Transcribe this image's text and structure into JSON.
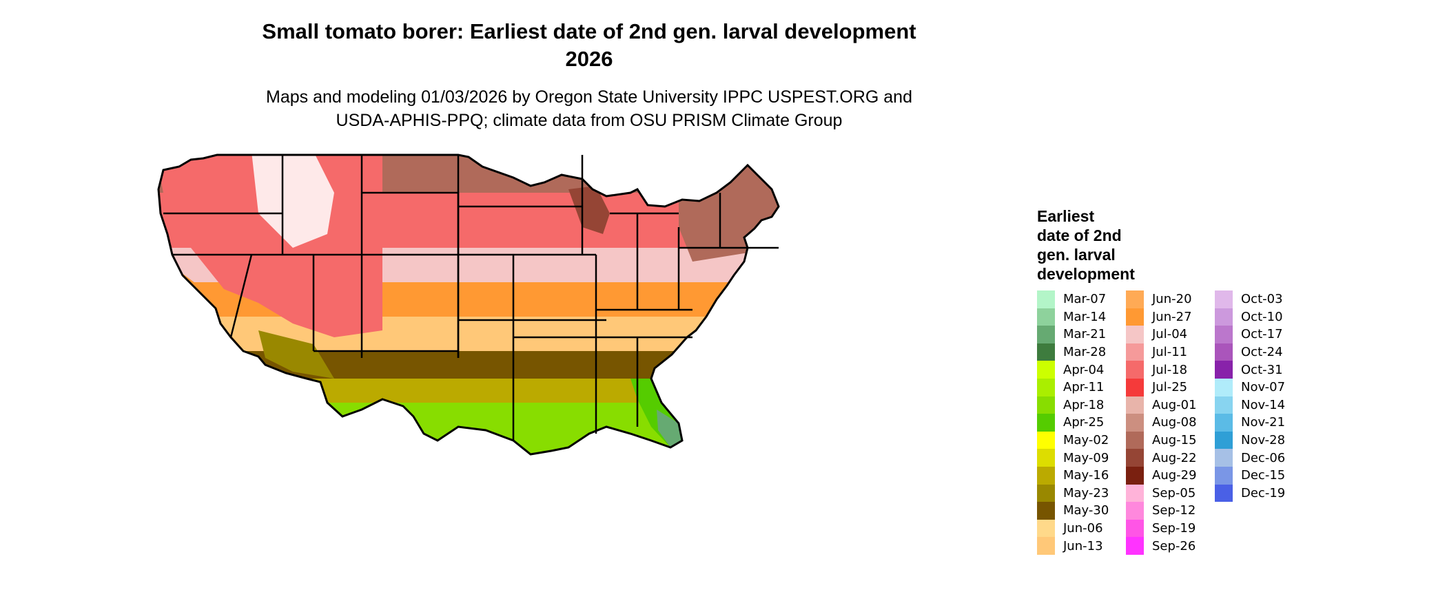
{
  "title": "Small tomato borer: Earliest date of 2nd gen. larval development\n2026",
  "title_line1": "Small tomato borer: Earliest date of 2nd gen. larval development",
  "title_line2": "2026",
  "subtitle_line1": "Maps and modeling 01/03/2026 by Oregon State University IPPC USPEST.ORG and",
  "subtitle_line2": "USDA-APHIS-PPQ; climate data from OSU PRISM Climate Group",
  "legend": {
    "title": "Earliest\ndate of 2nd\ngen. larval\ndevelopment",
    "items": [
      {
        "label": "Mar-07",
        "color": "#b3f5c8"
      },
      {
        "label": "Mar-14",
        "color": "#8ed29c"
      },
      {
        "label": "Mar-21",
        "color": "#66aa72"
      },
      {
        "label": "Mar-28",
        "color": "#3e7c3e"
      },
      {
        "label": "Apr-04",
        "color": "#ccff00"
      },
      {
        "label": "Apr-11",
        "color": "#aaee00"
      },
      {
        "label": "Apr-18",
        "color": "#88dd00"
      },
      {
        "label": "Apr-25",
        "color": "#55cc00"
      },
      {
        "label": "May-02",
        "color": "#ffff00"
      },
      {
        "label": "May-09",
        "color": "#dddd00"
      },
      {
        "label": "May-16",
        "color": "#bbaa00"
      },
      {
        "label": "May-23",
        "color": "#998800"
      },
      {
        "label": "May-30",
        "color": "#775500"
      },
      {
        "label": "Jun-06",
        "color": "#ffd98a"
      },
      {
        "label": "Jun-13",
        "color": "#ffc878"
      },
      {
        "label": "Jun-20",
        "color": "#ffaa55"
      },
      {
        "label": "Jun-27",
        "color": "#ff9933"
      },
      {
        "label": "Jul-04",
        "color": "#f5c6c6"
      },
      {
        "label": "Jul-11",
        "color": "#f59a9a"
      },
      {
        "label": "Jul-18",
        "color": "#f56a6a"
      },
      {
        "label": "Jul-25",
        "color": "#f53a3a"
      },
      {
        "label": "Aug-01",
        "color": "#e8b4aa"
      },
      {
        "label": "Aug-08",
        "color": "#cc8f80"
      },
      {
        "label": "Aug-15",
        "color": "#b06a5a"
      },
      {
        "label": "Aug-22",
        "color": "#954535"
      },
      {
        "label": "Aug-29",
        "color": "#7a2010"
      },
      {
        "label": "Sep-05",
        "color": "#ffb3d9"
      },
      {
        "label": "Sep-12",
        "color": "#ff88dd"
      },
      {
        "label": "Sep-19",
        "color": "#ff55e6"
      },
      {
        "label": "Sep-26",
        "color": "#ff33ff"
      },
      {
        "label": "Oct-03",
        "color": "#e0b8ea"
      },
      {
        "label": "Oct-10",
        "color": "#cc99dd"
      },
      {
        "label": "Oct-17",
        "color": "#bb77cc"
      },
      {
        "label": "Oct-24",
        "color": "#aa55bb"
      },
      {
        "label": "Oct-31",
        "color": "#8822aa"
      },
      {
        "label": "Nov-07",
        "color": "#b0ecfa"
      },
      {
        "label": "Nov-14",
        "color": "#88d4f0"
      },
      {
        "label": "Nov-21",
        "color": "#5bbbe6"
      },
      {
        "label": "Nov-28",
        "color": "#2f9fd6"
      },
      {
        "label": "Dec-06",
        "color": "#a6c0e6"
      },
      {
        "label": "Dec-15",
        "color": "#7a96e6"
      },
      {
        "label": "Dec-19",
        "color": "#4a60e6"
      }
    ]
  }
}
